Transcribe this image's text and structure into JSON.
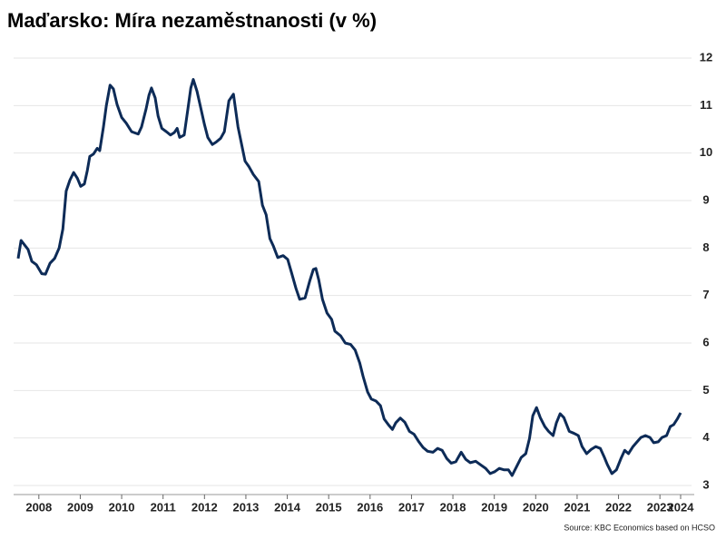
{
  "chart_data": {
    "type": "line",
    "title": "Maďarsko: Míra nezaměstnanosti (v %)",
    "source": "Source: KBC Economics based on HCSO",
    "xlim": [
      2008,
      2024
    ],
    "ylim": [
      3,
      12
    ],
    "yticks": [
      3,
      4,
      5,
      6,
      7,
      8,
      9,
      10,
      11,
      12
    ],
    "grid": true,
    "xticks": [
      {
        "value": 2008.5,
        "label": "2008"
      },
      {
        "value": 2009.5,
        "label": "2009"
      },
      {
        "value": 2010.5,
        "label": "2010"
      },
      {
        "value": 2011.5,
        "label": "2011"
      },
      {
        "value": 2012.5,
        "label": "2012"
      },
      {
        "value": 2013.5,
        "label": "2013"
      },
      {
        "value": 2014.5,
        "label": "2014"
      },
      {
        "value": 2015.5,
        "label": "2015"
      },
      {
        "value": 2016.5,
        "label": "2016"
      },
      {
        "value": 2017.5,
        "label": "2017"
      },
      {
        "value": 2018.5,
        "label": "2018"
      },
      {
        "value": 2019.5,
        "label": "2019"
      },
      {
        "value": 2020.5,
        "label": "2020"
      },
      {
        "value": 2021.5,
        "label": "2021"
      },
      {
        "value": 2022.5,
        "label": "2022"
      },
      {
        "value": 2023.5,
        "label": "2023"
      },
      {
        "value": 2024,
        "label": "2024"
      }
    ],
    "x": [
      2008.0,
      2008.07,
      2008.24,
      2008.33,
      2008.44,
      2008.57,
      2008.66,
      2008.77,
      2008.88,
      2008.99,
      2009.08,
      2009.16,
      2009.25,
      2009.34,
      2009.43,
      2009.51,
      2009.6,
      2009.67,
      2009.73,
      2009.82,
      2009.91,
      2009.97,
      2010.06,
      2010.13,
      2010.22,
      2010.3,
      2010.39,
      2010.5,
      2010.61,
      2010.74,
      2010.9,
      2010.98,
      2011.09,
      2011.16,
      2011.22,
      2011.31,
      2011.38,
      2011.47,
      2011.58,
      2011.68,
      2011.77,
      2011.84,
      2011.9,
      2012.01,
      2012.1,
      2012.17,
      2012.23,
      2012.32,
      2012.41,
      2012.5,
      2012.58,
      2012.69,
      2012.78,
      2012.89,
      2012.98,
      2013.09,
      2013.2,
      2013.31,
      2013.4,
      2013.48,
      2013.57,
      2013.68,
      2013.81,
      2013.9,
      2013.99,
      2014.08,
      2014.16,
      2014.27,
      2014.4,
      2014.51,
      2014.6,
      2014.71,
      2014.8,
      2014.93,
      2015.04,
      2015.13,
      2015.19,
      2015.26,
      2015.35,
      2015.46,
      2015.57,
      2015.65,
      2015.79,
      2015.9,
      2016.03,
      2016.14,
      2016.25,
      2016.33,
      2016.44,
      2016.53,
      2016.64,
      2016.75,
      2016.84,
      2016.95,
      2017.04,
      2017.12,
      2017.23,
      2017.34,
      2017.45,
      2017.56,
      2017.67,
      2017.78,
      2017.89,
      2018.02,
      2018.13,
      2018.24,
      2018.35,
      2018.46,
      2018.57,
      2018.7,
      2018.81,
      2018.92,
      2019.05,
      2019.16,
      2019.29,
      2019.4,
      2019.51,
      2019.62,
      2019.73,
      2019.84,
      2019.93,
      2020.04,
      2020.15,
      2020.26,
      2020.35,
      2020.43,
      2020.52,
      2020.61,
      2020.72,
      2020.81,
      2020.92,
      2021.0,
      2021.09,
      2021.18,
      2021.31,
      2021.42,
      2021.53,
      2021.62,
      2021.73,
      2021.84,
      2021.95,
      2022.06,
      2022.15,
      2022.23,
      2022.34,
      2022.45,
      2022.56,
      2022.65,
      2022.74,
      2022.85,
      2022.93,
      2023.04,
      2023.15,
      2023.26,
      2023.35,
      2023.46,
      2023.55,
      2023.66,
      2023.75,
      2023.83,
      2023.92,
      2024.0
    ],
    "series": [
      {
        "color": "#0d2b57",
        "values": [
          7.78,
          8.16,
          7.97,
          7.72,
          7.65,
          7.46,
          7.45,
          7.68,
          7.78,
          8.0,
          8.4,
          9.2,
          9.43,
          9.59,
          9.47,
          9.3,
          9.35,
          9.63,
          9.93,
          9.98,
          10.1,
          10.05,
          10.55,
          11.0,
          11.43,
          11.35,
          11.02,
          10.75,
          10.63,
          10.45,
          10.4,
          10.55,
          10.93,
          11.22,
          11.37,
          11.16,
          10.78,
          10.52,
          10.45,
          10.38,
          10.43,
          10.52,
          10.33,
          10.38,
          10.93,
          11.37,
          11.55,
          11.3,
          10.95,
          10.6,
          10.33,
          10.18,
          10.23,
          10.31,
          10.45,
          11.1,
          11.24,
          10.55,
          10.17,
          9.83,
          9.72,
          9.55,
          9.4,
          8.9,
          8.7,
          8.2,
          8.05,
          7.8,
          7.84,
          7.76,
          7.49,
          7.15,
          6.92,
          6.95,
          7.3,
          7.55,
          7.57,
          7.33,
          6.92,
          6.63,
          6.5,
          6.25,
          6.15,
          6.0,
          5.97,
          5.85,
          5.58,
          5.3,
          4.97,
          4.82,
          4.78,
          4.68,
          4.4,
          4.27,
          4.18,
          4.32,
          4.42,
          4.33,
          4.14,
          4.08,
          3.93,
          3.8,
          3.72,
          3.7,
          3.78,
          3.74,
          3.57,
          3.47,
          3.5,
          3.7,
          3.55,
          3.48,
          3.51,
          3.44,
          3.36,
          3.25,
          3.29,
          3.36,
          3.33,
          3.33,
          3.21,
          3.4,
          3.59,
          3.67,
          3.99,
          4.47,
          4.64,
          4.43,
          4.24,
          4.14,
          4.05,
          4.32,
          4.51,
          4.43,
          4.14,
          4.1,
          4.05,
          3.82,
          3.67,
          3.76,
          3.82,
          3.78,
          3.61,
          3.44,
          3.25,
          3.33,
          3.57,
          3.74,
          3.67,
          3.82,
          3.9,
          4.01,
          4.05,
          4.01,
          3.9,
          3.92,
          4.01,
          4.05,
          4.24,
          4.28,
          4.4,
          4.53
        ]
      }
    ]
  }
}
